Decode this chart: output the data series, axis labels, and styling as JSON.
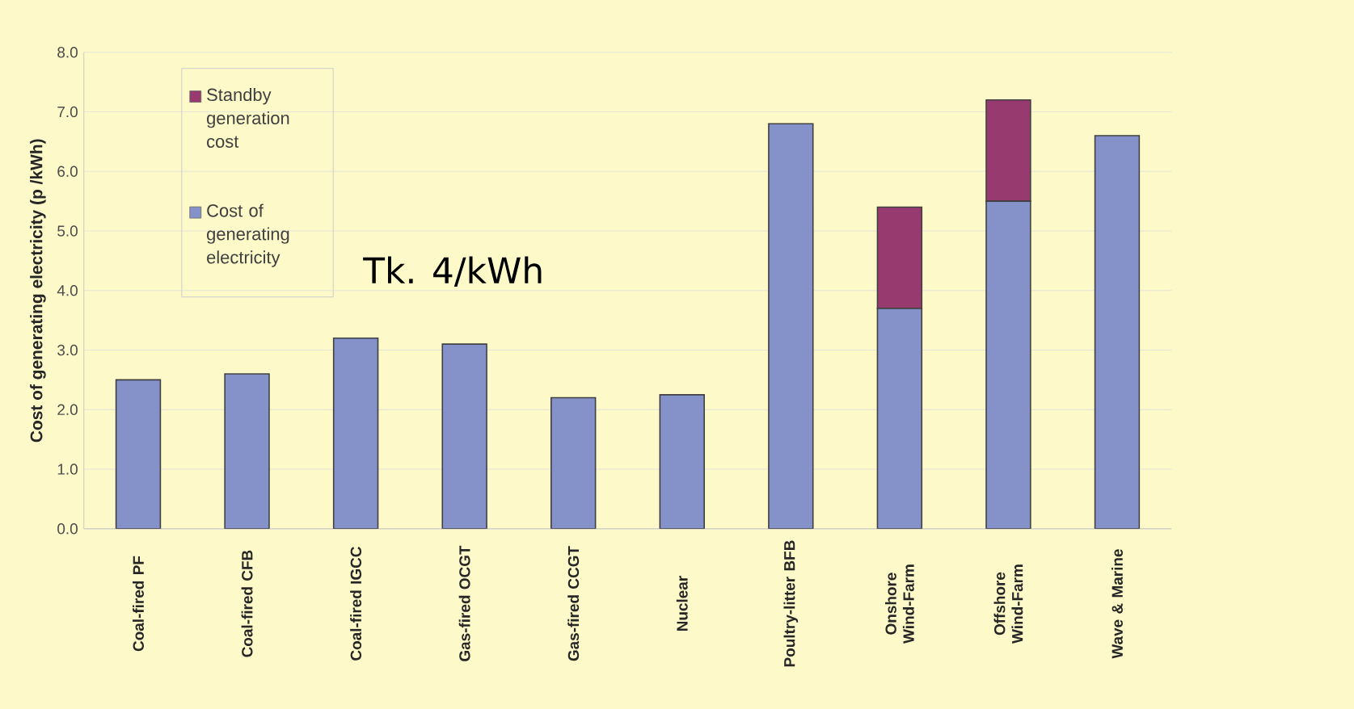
{
  "chart_data": {
    "type": "bar",
    "stacked": true,
    "ylabel": "Cost of generating electricity (p /kWh)",
    "categories": [
      "Coal-fired PF",
      "Coal-fired CFB",
      "Coal-fired IGCC",
      "Gas-fired OCGT",
      "Gas-fired CCGT",
      "Nuclear",
      "Poultry-litter BFB",
      "Onshore Wind-Farm",
      "Offshore Wind-Farm",
      "Wave & Marine"
    ],
    "series": [
      {
        "name": "Cost of generating electricity",
        "color": "#8591c9",
        "values": [
          2.5,
          2.6,
          3.2,
          3.1,
          2.2,
          2.25,
          6.8,
          3.7,
          5.5,
          6.6
        ]
      },
      {
        "name": "Standby generation cost",
        "color": "#963a70",
        "values": [
          null,
          null,
          null,
          null,
          null,
          null,
          null,
          1.7,
          1.7,
          null
        ]
      }
    ],
    "ylim": [
      0,
      8
    ],
    "yticks": [
      {
        "value": 0,
        "label": "0.0"
      },
      {
        "value": 1,
        "label": "1.0"
      },
      {
        "value": 2,
        "label": "2.0"
      },
      {
        "value": 3,
        "label": "3.0"
      },
      {
        "value": 4,
        "label": "4.0"
      },
      {
        "value": 5,
        "label": "5.0"
      },
      {
        "value": 6,
        "label": "6.0"
      },
      {
        "value": 7,
        "label": "7.0"
      },
      {
        "value": 8,
        "label": "8.0"
      }
    ],
    "grid": "y",
    "legend": "top left",
    "annotations": [
      "Tk. 4/kWh"
    ]
  }
}
